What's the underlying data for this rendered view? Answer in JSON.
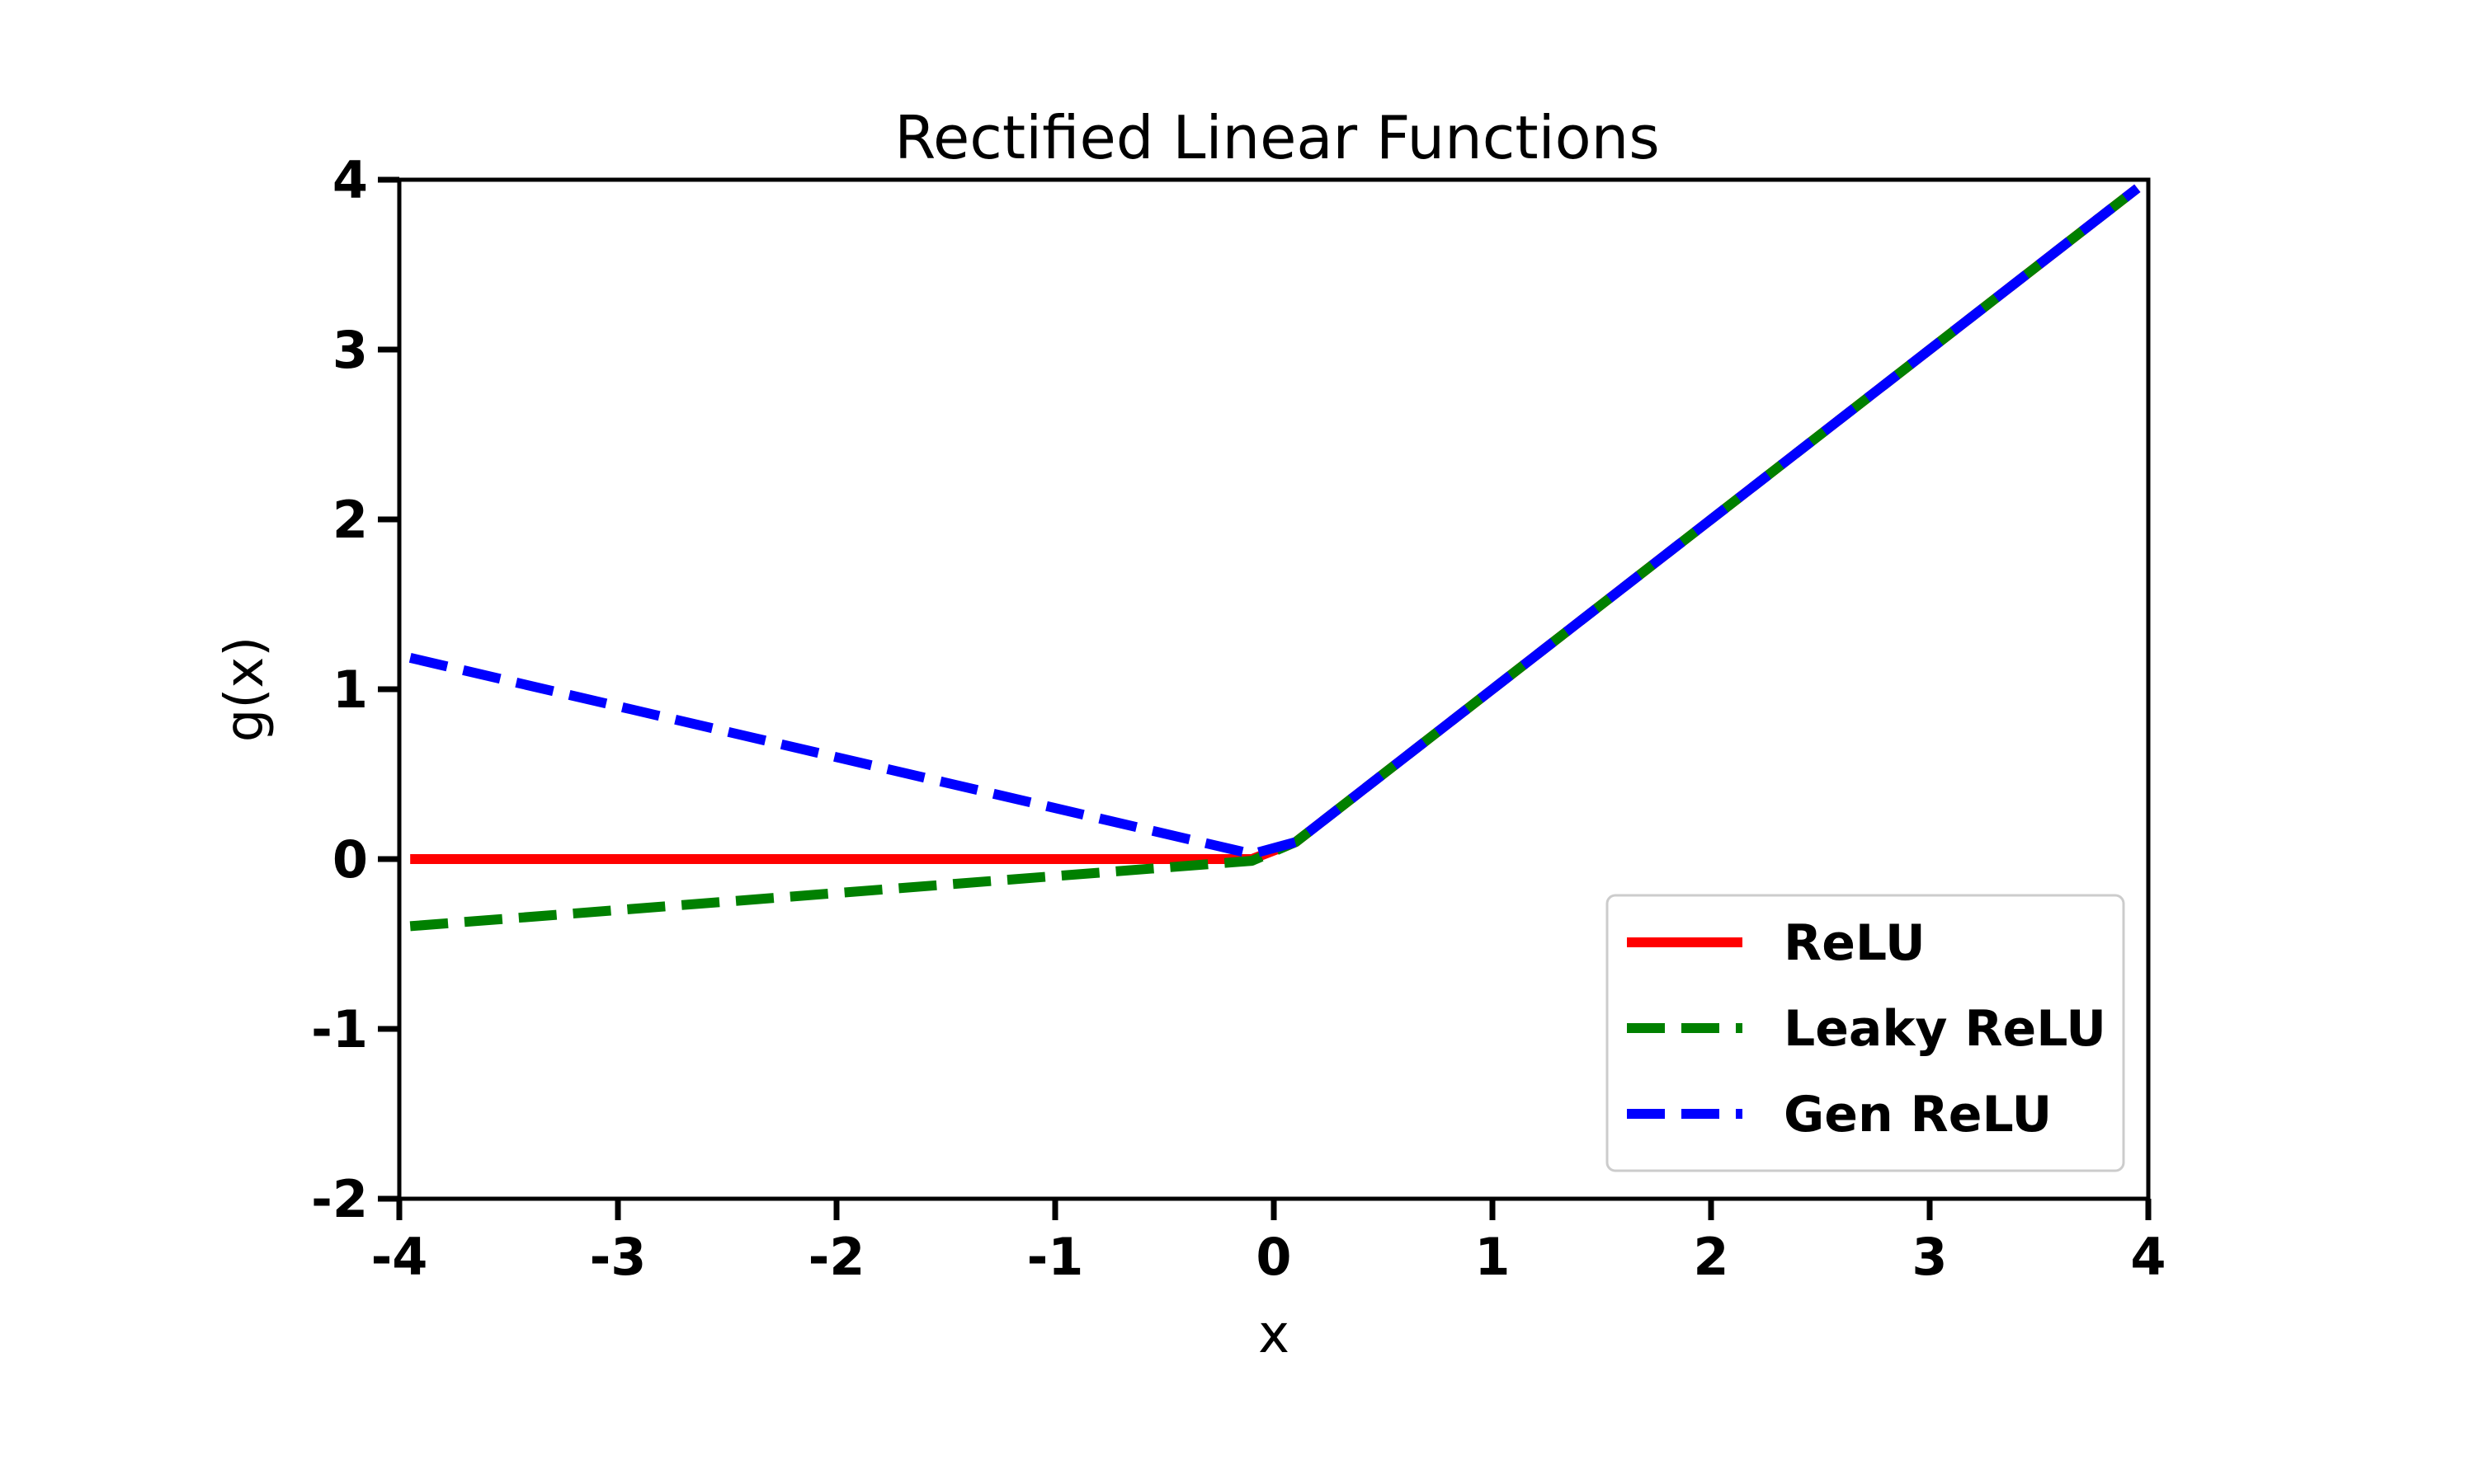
{
  "chart_data": {
    "type": "line",
    "title": "Rectified Linear Functions",
    "xlabel": "x",
    "ylabel": "g(x)",
    "xlim": [
      -4,
      4
    ],
    "ylim": [
      -2,
      4
    ],
    "xticks": [
      "-4",
      "-3",
      "-2",
      "-1",
      "0",
      "1",
      "2",
      "3",
      "4"
    ],
    "yticks": [
      "-2",
      "-1",
      "0",
      "1",
      "2",
      "3",
      "4"
    ],
    "grid": false,
    "legend_position": "lower-right",
    "series": [
      {
        "name": "ReLU",
        "color": "#ff0000",
        "style": "solid",
        "x": [
          -3.95,
          -0.2,
          -0.1,
          0.1,
          3.95
        ],
        "y": [
          0.0,
          0.0,
          0.0,
          0.1,
          3.95
        ]
      },
      {
        "name": "Leaky ReLU",
        "color": "#008000",
        "style": "dashed",
        "x": [
          -3.95,
          -0.1,
          0.1,
          3.95
        ],
        "y": [
          -0.395,
          -0.01,
          0.1,
          3.95
        ]
      },
      {
        "name": "Gen ReLU",
        "color": "#0000ff",
        "style": "dashed",
        "x": [
          -3.95,
          -0.1,
          0.1,
          3.95
        ],
        "y": [
          1.185,
          0.03,
          0.1,
          3.95
        ]
      }
    ]
  }
}
